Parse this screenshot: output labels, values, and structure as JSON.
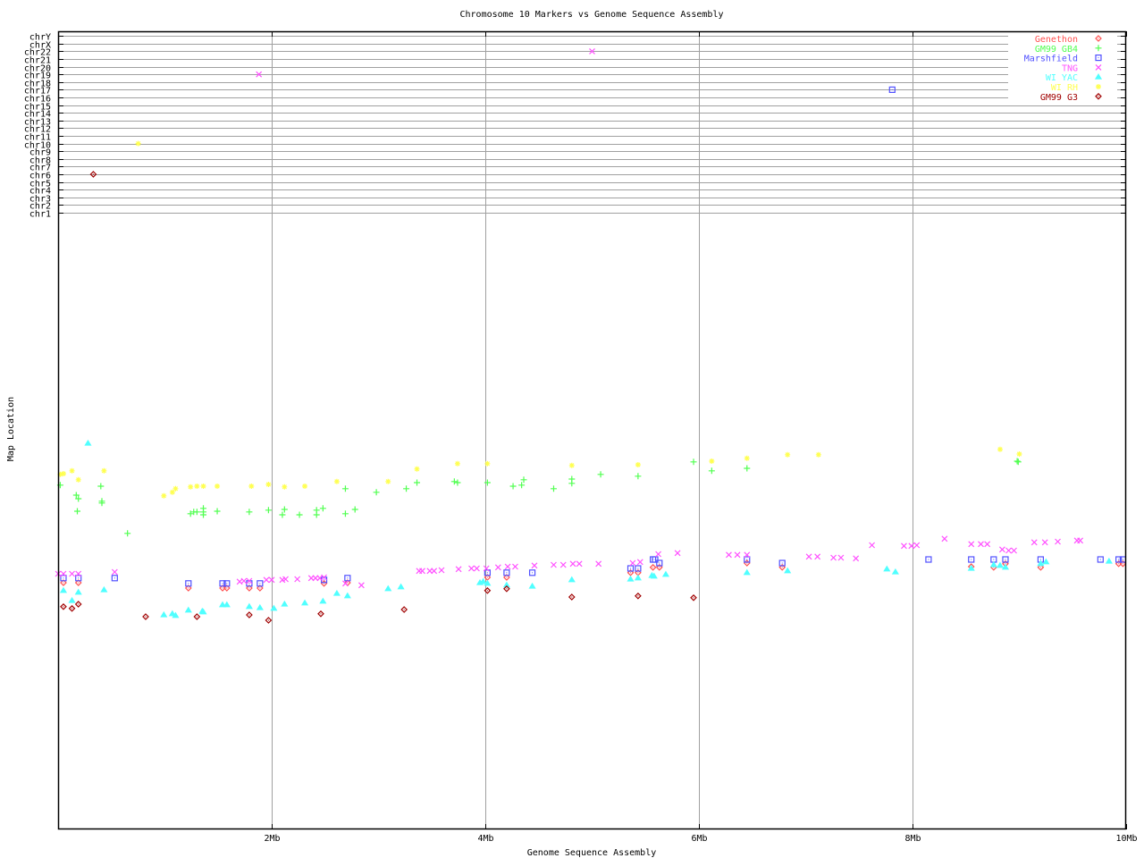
{
  "chart_data": {
    "type": "scatter",
    "title": "Chromosome 10 Markers vs Genome Sequence Assembly",
    "xlabel": "Genome Sequence Assembly",
    "ylabel": "Map Location",
    "xlim": [
      0,
      10
    ],
    "x_unit": "Mb",
    "x_ticks": [
      {
        "value": 2,
        "label": "2Mb"
      },
      {
        "value": 4,
        "label": "4Mb"
      },
      {
        "value": 6,
        "label": "6Mb"
      },
      {
        "value": 8,
        "label": "8Mb"
      },
      {
        "value": 10,
        "label": "10Mb"
      }
    ],
    "y_categories": [
      "chr1",
      "chr2",
      "chr3",
      "chr4",
      "chr5",
      "chr6",
      "chr7",
      "chr8",
      "chr9",
      "chr10",
      "chr11",
      "chr12",
      "chr13",
      "chr14",
      "chr15",
      "chr16",
      "chr17",
      "chr18",
      "chr19",
      "chr20",
      "chr21",
      "chr22",
      "chrX",
      "chrY"
    ],
    "grid": true,
    "legend_position": "top-right",
    "series": [
      {
        "name": "Genethon",
        "color": "#ff5050",
        "marker": "diamond",
        "points": [
          [
            0.05,
            69
          ],
          [
            0.19,
            69
          ],
          [
            1.22,
            67.5
          ],
          [
            1.54,
            67.5
          ],
          [
            1.58,
            67.5
          ],
          [
            1.79,
            67.5
          ],
          [
            1.89,
            67.5
          ],
          [
            2.49,
            68.8
          ],
          [
            2.71,
            69
          ],
          [
            4.02,
            70.5
          ],
          [
            4.2,
            70.5
          ],
          [
            5.36,
            71.8
          ],
          [
            5.43,
            71.8
          ],
          [
            5.57,
            73.3
          ],
          [
            5.63,
            73.3
          ],
          [
            6.45,
            74.5
          ],
          [
            6.78,
            73.3
          ],
          [
            8.55,
            73.5
          ],
          [
            8.76,
            73.3
          ],
          [
            8.87,
            74.3
          ],
          [
            9.2,
            73.3
          ],
          [
            9.93,
            74.3
          ],
          [
            9.97,
            74.3
          ]
        ],
        "other_chr": []
      },
      {
        "name": "GM99 GB4",
        "color": "#50ff50",
        "marker": "plus",
        "points": [
          [
            0.02,
            96.3
          ],
          [
            0.17,
            93.5
          ],
          [
            0.19,
            92.5
          ],
          [
            0.18,
            89
          ],
          [
            0.4,
            96
          ],
          [
            0.41,
            91.8
          ],
          [
            0.41,
            91.3
          ],
          [
            0.65,
            82.8
          ],
          [
            1.24,
            88.3
          ],
          [
            1.27,
            88.8
          ],
          [
            1.3,
            88.8
          ],
          [
            1.36,
            89.8
          ],
          [
            1.36,
            88.8
          ],
          [
            1.36,
            88
          ],
          [
            1.49,
            89
          ],
          [
            1.79,
            88.8
          ],
          [
            1.97,
            89.3
          ],
          [
            2.1,
            88
          ],
          [
            2.12,
            89.5
          ],
          [
            2.26,
            88
          ],
          [
            2.42,
            88
          ],
          [
            2.42,
            89.3
          ],
          [
            2.48,
            89.8
          ],
          [
            2.69,
            88.3
          ],
          [
            2.69,
            95.3
          ],
          [
            2.78,
            89.5
          ],
          [
            2.98,
            94.3
          ],
          [
            3.26,
            95.3
          ],
          [
            3.36,
            97
          ],
          [
            3.71,
            97.3
          ],
          [
            3.74,
            97
          ],
          [
            4.02,
            97
          ],
          [
            4.26,
            96
          ],
          [
            4.34,
            96.3
          ],
          [
            4.36,
            97.8
          ],
          [
            4.64,
            95.3
          ],
          [
            4.81,
            98
          ],
          [
            4.81,
            96.8
          ],
          [
            5.08,
            99.3
          ],
          [
            5.43,
            98.8
          ],
          [
            5.95,
            102.8
          ],
          [
            6.12,
            100.3
          ],
          [
            6.45,
            101
          ],
          [
            8.98,
            103
          ],
          [
            8.99,
            102.8
          ]
        ],
        "other_chr": []
      },
      {
        "name": "Marshfield",
        "color": "#5050ff",
        "marker": "box",
        "points": [
          [
            0.05,
            70.3
          ],
          [
            0.19,
            70.3
          ],
          [
            0.53,
            70.3
          ],
          [
            1.22,
            68.8
          ],
          [
            1.54,
            68.8
          ],
          [
            1.58,
            68.8
          ],
          [
            1.79,
            68.8
          ],
          [
            1.89,
            68.8
          ],
          [
            2.49,
            69.8
          ],
          [
            2.71,
            70.3
          ],
          [
            4.02,
            71.8
          ],
          [
            4.2,
            71.8
          ],
          [
            4.44,
            71.8
          ],
          [
            5.36,
            73
          ],
          [
            5.43,
            73
          ],
          [
            5.57,
            75.5
          ],
          [
            5.59,
            75.5
          ],
          [
            5.63,
            74.5
          ],
          [
            6.45,
            75.5
          ],
          [
            6.78,
            74.5
          ],
          [
            8.15,
            75.5
          ],
          [
            8.55,
            75.5
          ],
          [
            8.76,
            75.5
          ],
          [
            8.87,
            75.5
          ],
          [
            9.2,
            75.5
          ],
          [
            9.76,
            75.5
          ],
          [
            9.93,
            75.5
          ],
          [
            9.97,
            75.5
          ]
        ],
        "other_chr": [
          {
            "x": 7.81,
            "chr": "chr17"
          }
        ]
      },
      {
        "name": "TNG",
        "color": "#ff50ff",
        "marker": "cross",
        "points": [
          [
            0.0,
            71.5
          ],
          [
            0.05,
            71.5
          ],
          [
            0.13,
            71.5
          ],
          [
            0.19,
            71.5
          ],
          [
            0.53,
            72
          ],
          [
            1.7,
            69.3
          ],
          [
            1.74,
            69.5
          ],
          [
            1.79,
            69.5
          ],
          [
            1.95,
            69.8
          ],
          [
            2.0,
            69.8
          ],
          [
            2.1,
            69.8
          ],
          [
            2.13,
            70
          ],
          [
            2.24,
            70
          ],
          [
            2.37,
            70.3
          ],
          [
            2.41,
            70.3
          ],
          [
            2.45,
            70.3
          ],
          [
            2.49,
            70.5
          ],
          [
            2.69,
            68.8
          ],
          [
            2.84,
            68.3
          ],
          [
            3.38,
            72.3
          ],
          [
            3.41,
            72.3
          ],
          [
            3.48,
            72.3
          ],
          [
            3.52,
            72.3
          ],
          [
            3.59,
            72.5
          ],
          [
            3.75,
            72.8
          ],
          [
            3.87,
            73
          ],
          [
            3.92,
            73
          ],
          [
            4.01,
            73
          ],
          [
            4.12,
            73.3
          ],
          [
            4.21,
            73.5
          ],
          [
            4.28,
            73.5
          ],
          [
            4.46,
            73.8
          ],
          [
            4.64,
            74
          ],
          [
            4.73,
            74
          ],
          [
            4.82,
            74.3
          ],
          [
            4.88,
            74.3
          ],
          [
            5.06,
            74.3
          ],
          [
            5.38,
            74.5
          ],
          [
            5.45,
            74.8
          ],
          [
            5.62,
            77
          ],
          [
            5.8,
            77.3
          ],
          [
            6.28,
            76.8
          ],
          [
            6.36,
            76.8
          ],
          [
            6.45,
            76.8
          ],
          [
            7.03,
            76.3
          ],
          [
            7.11,
            76.3
          ],
          [
            7.26,
            76
          ],
          [
            7.33,
            76
          ],
          [
            7.47,
            75.8
          ],
          [
            7.62,
            79.5
          ],
          [
            7.92,
            79.3
          ],
          [
            7.99,
            79.3
          ],
          [
            8.04,
            79.5
          ],
          [
            8.3,
            81.3
          ],
          [
            8.55,
            79.8
          ],
          [
            8.64,
            79.8
          ],
          [
            8.7,
            79.8
          ],
          [
            8.84,
            78.3
          ],
          [
            8.9,
            78
          ],
          [
            8.95,
            78
          ],
          [
            9.14,
            80.3
          ],
          [
            9.24,
            80.3
          ],
          [
            9.36,
            80.5
          ],
          [
            9.54,
            80.8
          ],
          [
            9.57,
            80.8
          ]
        ],
        "other_chr": [
          {
            "x": 1.88,
            "chr": "chr19"
          },
          {
            "x": 5.0,
            "chr": "chr22"
          }
        ]
      },
      {
        "name": "WI YAC",
        "color": "#50ffff",
        "marker": "triangle",
        "points": [
          [
            0.28,
            108
          ],
          [
            0.05,
            66.8
          ],
          [
            0.13,
            64
          ],
          [
            0.19,
            66.3
          ],
          [
            0.43,
            67
          ],
          [
            0.99,
            60
          ],
          [
            1.07,
            60.3
          ],
          [
            1.1,
            59.8
          ],
          [
            1.22,
            61.3
          ],
          [
            1.35,
            61
          ],
          [
            1.36,
            60.8
          ],
          [
            1.54,
            62.8
          ],
          [
            1.58,
            62.8
          ],
          [
            1.79,
            62.3
          ],
          [
            1.89,
            62
          ],
          [
            2.02,
            61.8
          ],
          [
            2.12,
            63
          ],
          [
            2.31,
            63.3
          ],
          [
            2.48,
            63.8
          ],
          [
            2.61,
            66
          ],
          [
            2.71,
            65.3
          ],
          [
            3.09,
            67.3
          ],
          [
            3.21,
            67.8
          ],
          [
            3.95,
            69
          ],
          [
            3.98,
            69.3
          ],
          [
            4.02,
            68.8
          ],
          [
            4.2,
            68.3
          ],
          [
            4.44,
            68
          ],
          [
            4.81,
            69.8
          ],
          [
            5.36,
            70
          ],
          [
            5.43,
            70.3
          ],
          [
            5.56,
            71
          ],
          [
            5.58,
            70.8
          ],
          [
            5.69,
            71.3
          ],
          [
            6.45,
            71.8
          ],
          [
            6.83,
            72.3
          ],
          [
            7.76,
            72.8
          ],
          [
            7.84,
            72
          ],
          [
            8.55,
            73
          ],
          [
            8.76,
            74
          ],
          [
            8.82,
            73.8
          ],
          [
            8.87,
            73.3
          ],
          [
            9.2,
            74.3
          ],
          [
            9.25,
            74.8
          ],
          [
            9.84,
            75
          ]
        ],
        "other_chr": []
      },
      {
        "name": "WI RH",
        "color": "#ffff50",
        "marker": "star",
        "points": [
          [
            0.02,
            99.3
          ],
          [
            0.05,
            99.5
          ],
          [
            0.13,
            100.3
          ],
          [
            0.19,
            97.8
          ],
          [
            0.43,
            100.3
          ],
          [
            0.99,
            93.3
          ],
          [
            1.07,
            94.3
          ],
          [
            1.1,
            95.3
          ],
          [
            1.24,
            95.8
          ],
          [
            1.3,
            96
          ],
          [
            1.36,
            96
          ],
          [
            1.49,
            96
          ],
          [
            1.81,
            96
          ],
          [
            1.97,
            96.5
          ],
          [
            2.12,
            95.8
          ],
          [
            2.31,
            96
          ],
          [
            2.61,
            97.3
          ],
          [
            3.09,
            97.3
          ],
          [
            3.36,
            100.8
          ],
          [
            3.74,
            102.3
          ],
          [
            4.02,
            102.3
          ],
          [
            4.81,
            101.8
          ],
          [
            5.43,
            102
          ],
          [
            6.12,
            103
          ],
          [
            6.45,
            103.8
          ],
          [
            6.83,
            104.8
          ],
          [
            7.12,
            104.8
          ],
          [
            8.82,
            106.3
          ],
          [
            9.0,
            105
          ]
        ],
        "other_chr": [
          {
            "x": 0.75,
            "chr": "chr10"
          }
        ]
      },
      {
        "name": "GM99 G3",
        "color": "#a00000",
        "marker": "diamond",
        "points": [
          [
            0.05,
            62.3
          ],
          [
            0.13,
            61.8
          ],
          [
            0.19,
            63
          ],
          [
            0.82,
            59.5
          ],
          [
            1.3,
            59.5
          ],
          [
            1.79,
            60
          ],
          [
            1.97,
            58.5
          ],
          [
            2.46,
            60.3
          ],
          [
            3.24,
            61.5
          ],
          [
            4.02,
            66.8
          ],
          [
            4.2,
            67.3
          ],
          [
            4.81,
            65
          ],
          [
            5.43,
            65.3
          ],
          [
            5.95,
            64.8
          ]
        ],
        "other_chr": [
          {
            "x": 0.33,
            "chr": "chr6"
          }
        ]
      }
    ]
  }
}
